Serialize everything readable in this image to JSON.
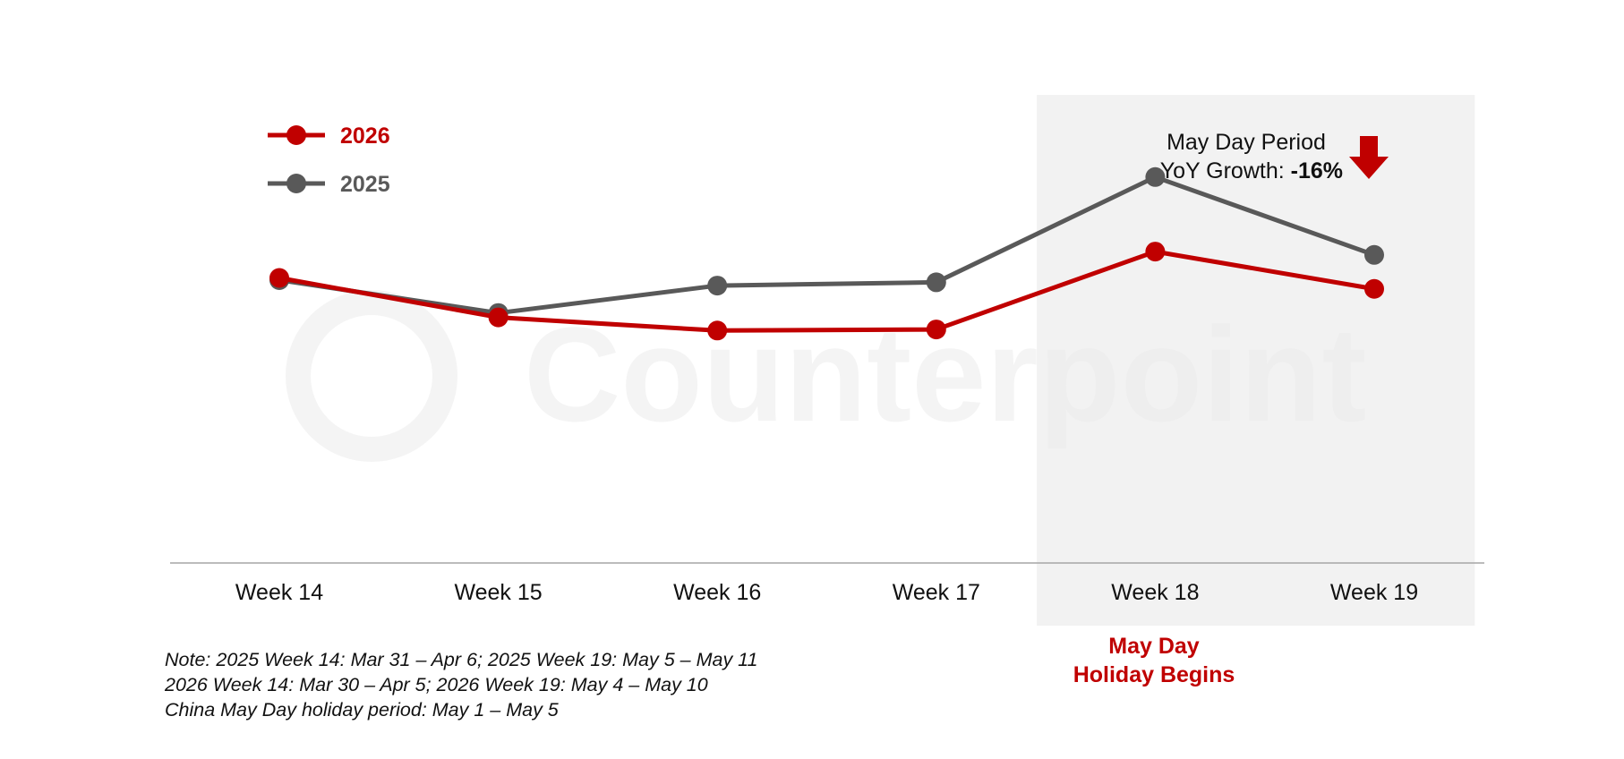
{
  "chart_data": {
    "type": "line",
    "title": "",
    "xlabel": "",
    "ylabel": "",
    "categories": [
      "Week 14",
      "Week 15",
      "Week 16",
      "Week 17",
      "Week 18",
      "Week 19"
    ],
    "series": [
      {
        "name": "2026",
        "color": "#c00000",
        "values": [
          0.7,
          0.52,
          0.46,
          0.465,
          0.82,
          0.65
        ]
      },
      {
        "name": "2025",
        "color": "#595959",
        "values": [
          0.69,
          0.54,
          0.665,
          0.68,
          1.16,
          0.805
        ]
      }
    ],
    "ylim": [
      -0.6,
      1.6
    ],
    "grid": false,
    "legend": "top-left",
    "highlight_categories": [
      "Week 18",
      "Week 19"
    ],
    "annotation": {
      "line1": "May Day Period",
      "line2_prefix": "YoY Growth: ",
      "line2_value": "-16%",
      "arrow_icon": "down-arrow-icon",
      "arrow_color": "#c00000"
    },
    "holiday_label": {
      "line1": "May Day",
      "line2": "Holiday Begins",
      "color": "#c00000"
    },
    "watermark": "Counterpoint"
  },
  "notes": [
    "Note: 2025 Week 14: Mar 31 – Apr 6; 2025 Week 19: May 5 – May 11",
    "2026 Week 14: Mar 30 – Apr 5; 2026 Week 19: May 4 – May 10",
    "China May Day holiday period: May 1 – May 5"
  ]
}
